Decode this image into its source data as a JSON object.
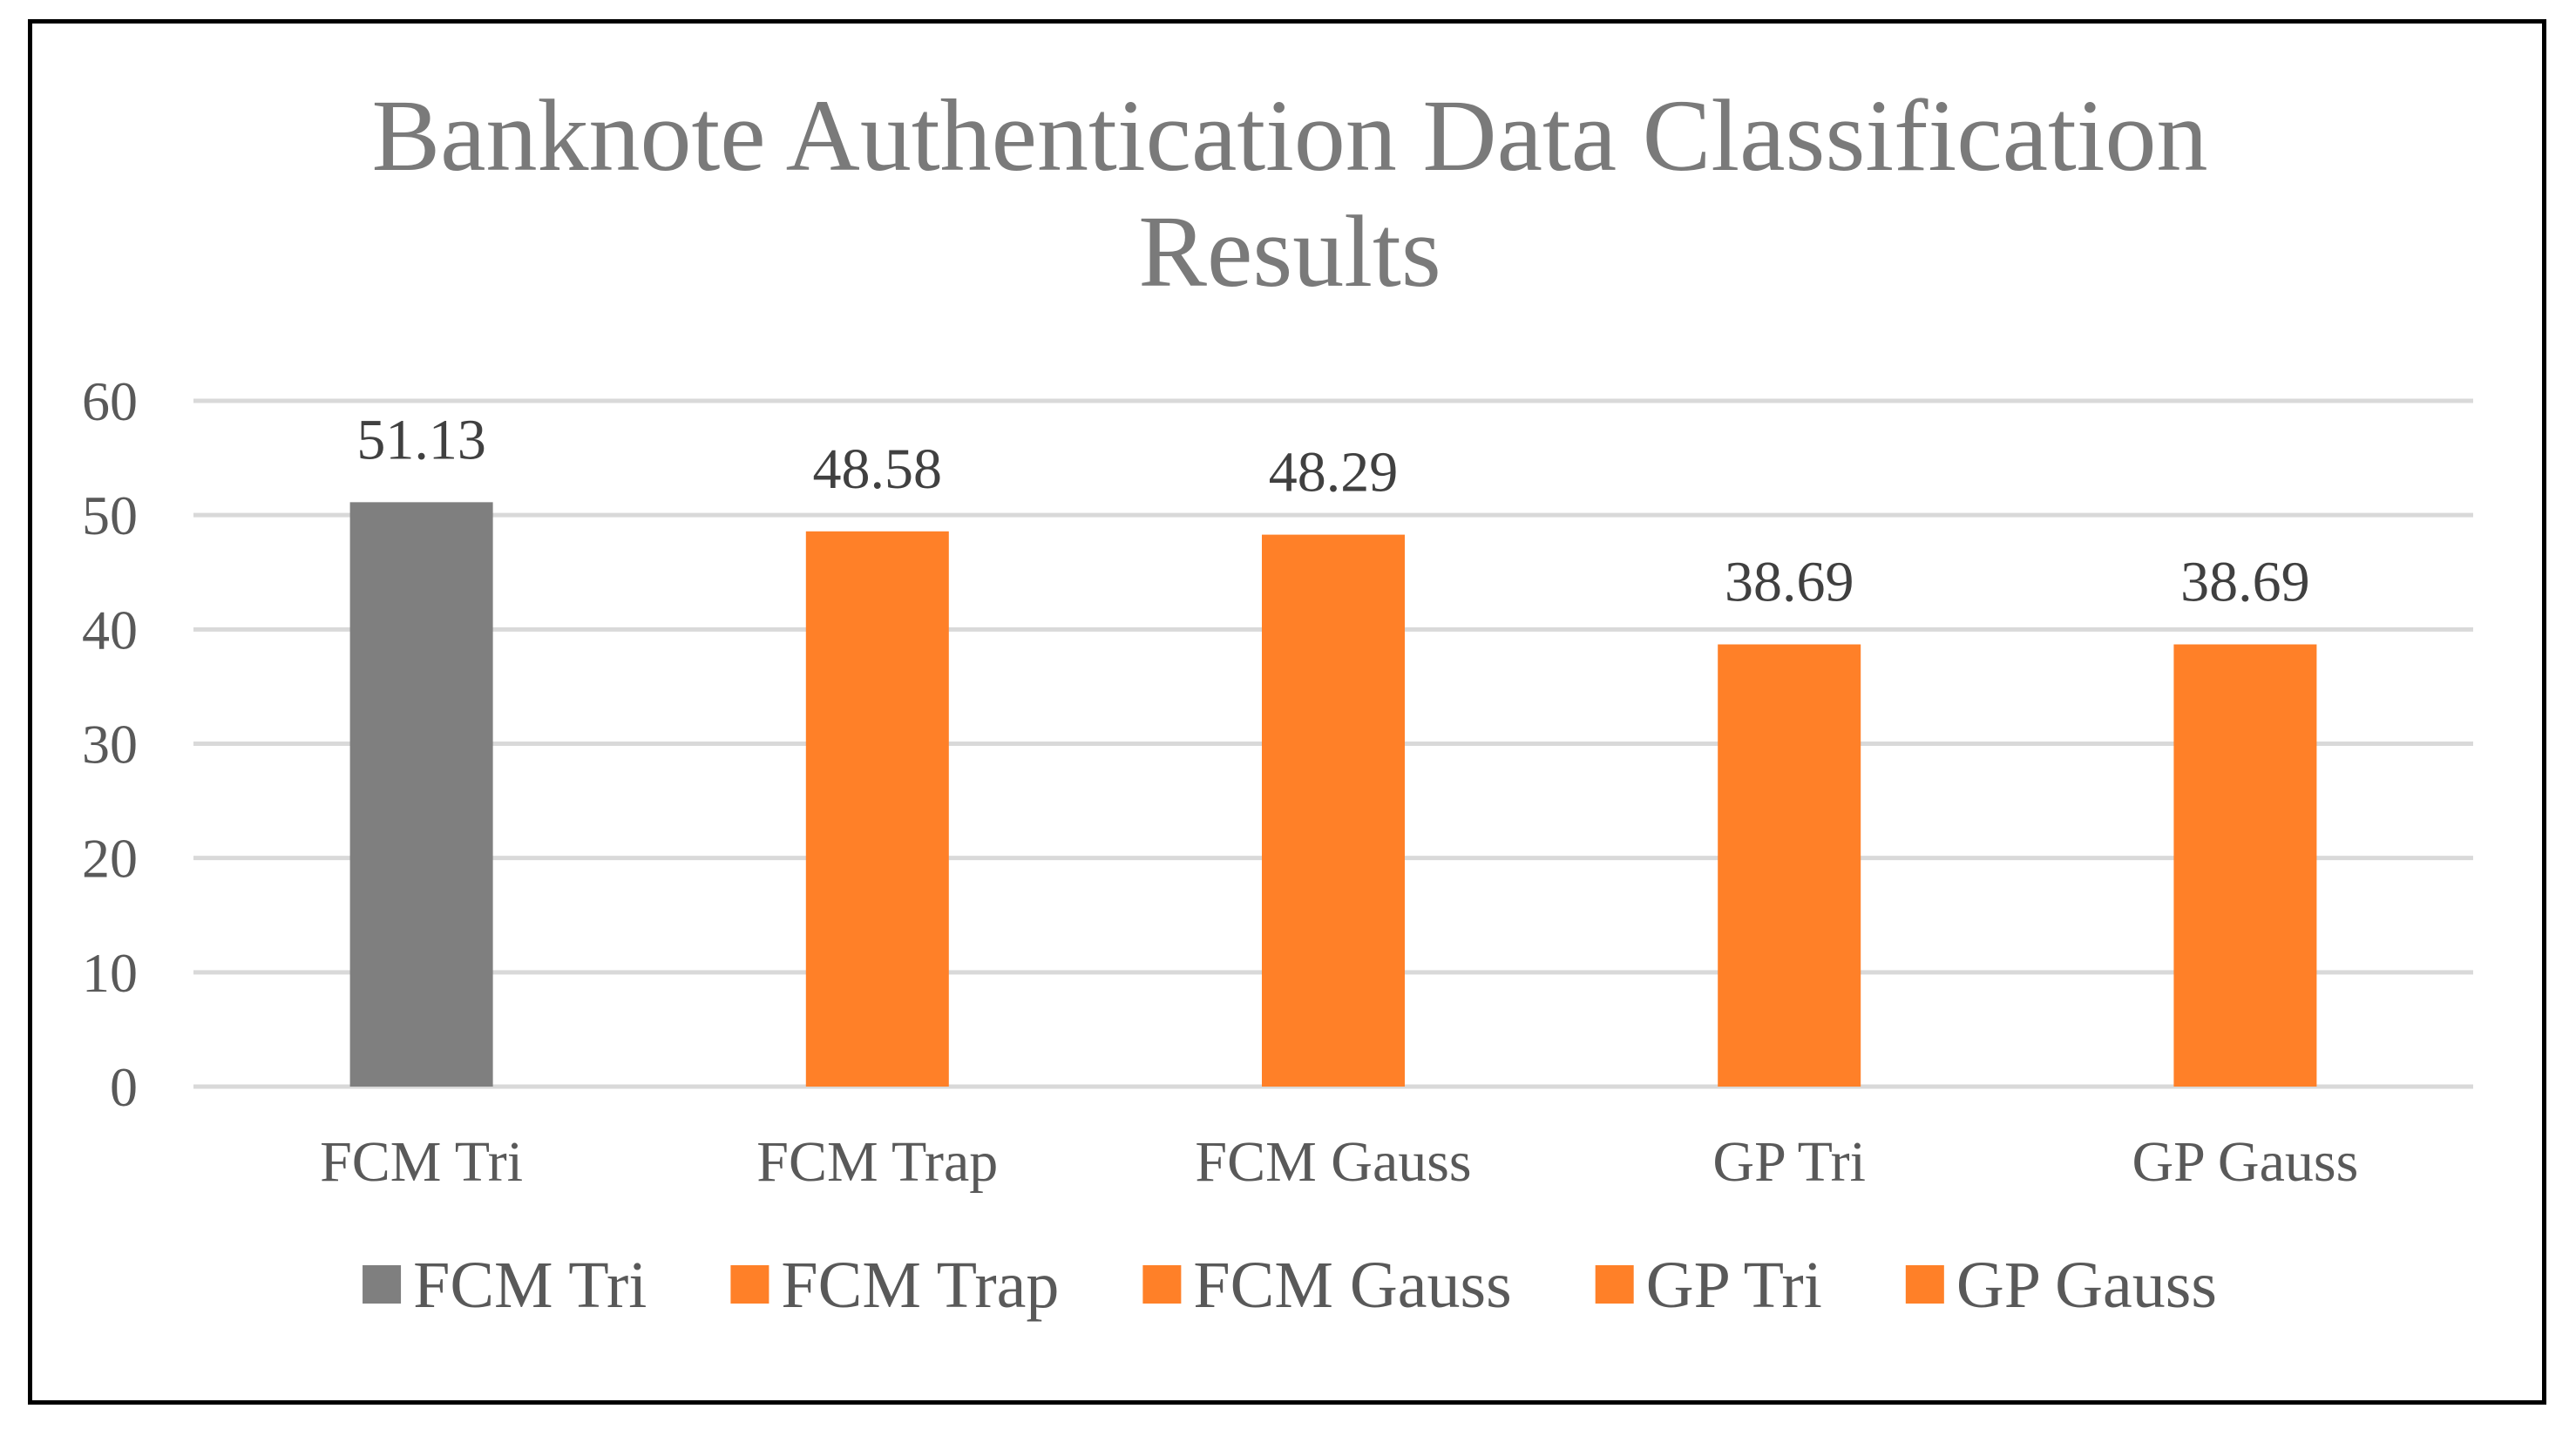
{
  "chart_data": {
    "type": "bar",
    "title_lines": [
      "Banknote Authentication Data Classification",
      "Results"
    ],
    "categories": [
      "FCM Tri",
      "FCM Trap",
      "FCM Gauss",
      "GP Tri",
      "GP Gauss"
    ],
    "values": [
      51.13,
      48.58,
      48.29,
      38.69,
      38.69
    ],
    "data_labels": [
      "51.13",
      "48.58",
      "48.29",
      "38.69",
      "38.69"
    ],
    "bar_colors": [
      "#7f7f7f",
      "#ff8028",
      "#ff8028",
      "#ff8028",
      "#ff8028"
    ],
    "ylim": [
      0,
      60
    ],
    "yticks": [
      0,
      10,
      20,
      30,
      40,
      50,
      60
    ],
    "grid": true,
    "grid_color": "#d9d9d9",
    "legend": {
      "placement": "bottom",
      "entries": [
        {
          "label": "FCM Tri",
          "color": "#7f7f7f"
        },
        {
          "label": "FCM Trap",
          "color": "#ff8028"
        },
        {
          "label": "FCM Gauss",
          "color": "#ff8028"
        },
        {
          "label": "GP Tri",
          "color": "#ff8028"
        },
        {
          "label": "GP Gauss",
          "color": "#ff8028"
        }
      ]
    },
    "xlabel": "",
    "ylabel": ""
  }
}
